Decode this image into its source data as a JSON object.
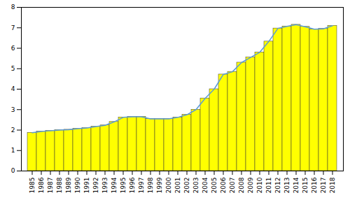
{
  "chart_data": {
    "type": "bar",
    "categories": [
      "1985",
      "1986",
      "1987",
      "1988",
      "1989",
      "1990",
      "1991",
      "1992",
      "1993",
      "1994",
      "1995",
      "1996",
      "1997",
      "1998",
      "1999",
      "2000",
      "2001",
      "2002",
      "2003",
      "2004",
      "2005",
      "2006",
      "2007",
      "2008",
      "2009",
      "2010",
      "2011",
      "2012",
      "2013",
      "2014",
      "2015",
      "2016",
      "2017",
      "2018"
    ],
    "series": [
      {
        "type": "bar",
        "color": "#ffff00",
        "values": [
          1.87,
          1.93,
          1.97,
          2.0,
          2.02,
          2.07,
          2.1,
          2.17,
          2.23,
          2.4,
          2.62,
          2.65,
          2.65,
          2.55,
          2.55,
          2.55,
          2.62,
          2.75,
          3.0,
          3.55,
          4.0,
          4.72,
          4.85,
          5.3,
          5.55,
          5.8,
          6.33,
          6.97,
          7.07,
          7.15,
          7.05,
          6.93,
          6.95,
          7.1
        ]
      },
      {
        "type": "line",
        "color": "#5b9bd5",
        "values": [
          1.87,
          1.93,
          1.97,
          2.0,
          2.02,
          2.07,
          2.1,
          2.17,
          2.23,
          2.4,
          2.62,
          2.65,
          2.65,
          2.55,
          2.55,
          2.55,
          2.62,
          2.75,
          3.0,
          3.55,
          4.0,
          4.72,
          4.85,
          5.3,
          5.55,
          5.8,
          6.33,
          6.97,
          7.07,
          7.15,
          7.05,
          6.93,
          6.95,
          7.1
        ]
      }
    ],
    "ylim": [
      0,
      8
    ],
    "yticks": [
      0,
      1,
      2,
      3,
      4,
      5,
      6,
      7,
      8
    ],
    "grid": false
  }
}
